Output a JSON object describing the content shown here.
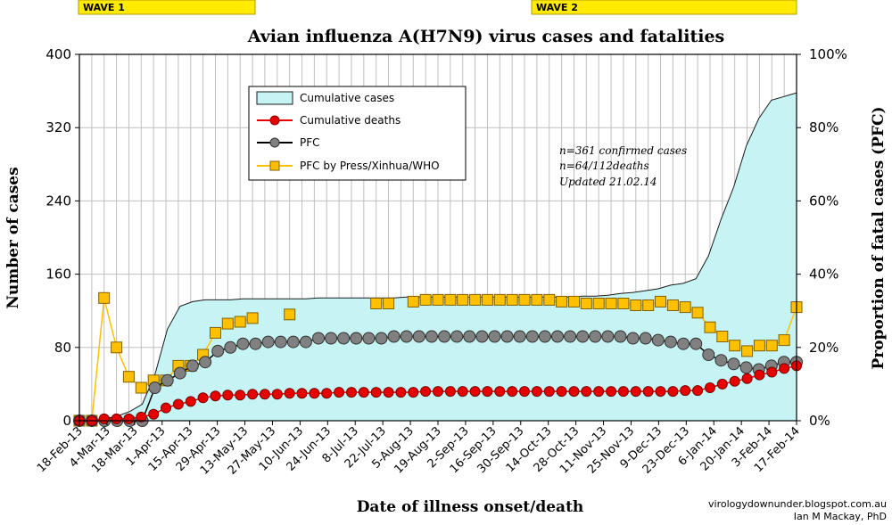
{
  "waves": [
    {
      "label": "WAVE 1"
    },
    {
      "label": "WAVE 2"
    }
  ],
  "notes": [
    "n=361 confirmed cases",
    "n=64/112deaths",
    "Updated 21.02.14"
  ],
  "credits": [
    "virologydownunder.blogspot.com.au",
    "Ian M Mackay, PhD"
  ],
  "colors": {
    "area_fill": "#c6f4f4",
    "area_stroke": "#1a1a1a",
    "deaths": "#e60000",
    "pfc": "#808080",
    "pfc_press": "#ffc000",
    "grid": "#bfbfbf",
    "wave": "#ffeb00"
  },
  "chart_data": {
    "type": "line",
    "title": "Avian influenza A(H7N9) virus cases and fatalities",
    "xlabel": "Date of illness onset/death",
    "ylabel": "Number of cases",
    "y2label": "Proportion of fatal cases (PFC)",
    "ylim": [
      0,
      400
    ],
    "y2lim": [
      0,
      100
    ],
    "yticks": [
      "0",
      "80",
      "160",
      "240",
      "320",
      "400"
    ],
    "y2ticks": [
      "0%",
      "20%",
      "40%",
      "60%",
      "80%",
      "100%"
    ],
    "x_labels": [
      "18-Feb-13",
      "4-Mar-13",
      "18-Mar-13",
      "1-Apr-13",
      "15-Apr-13",
      "29-Apr-13",
      "13-May-13",
      "27-May-13",
      "10-Jun-13",
      "24-Jun-13",
      "8-Jul-13",
      "22-Jul-13",
      "5-Aug-13",
      "19-Aug-13",
      "2-Sep-13",
      "16-Sep-13",
      "30-Sep-13",
      "14-Oct-13",
      "28-Oct-13",
      "11-Nov-13",
      "25-Nov-13",
      "9-Dec-13",
      "23-Dec-13",
      "6-Jan-14",
      "20-Jan-14",
      "3-Feb-14",
      "17-Feb-14"
    ],
    "grid": true,
    "legend_position": "top-left",
    "series": [
      {
        "name": "Cumulative cases",
        "type": "area",
        "axis": "left",
        "values": [
          0,
          0,
          2,
          5,
          10,
          18,
          50,
          100,
          125,
          130,
          132,
          132,
          132,
          133,
          133,
          133,
          133,
          133,
          133,
          134,
          134,
          134,
          134,
          134,
          134,
          134,
          135,
          135,
          135,
          135,
          135,
          135,
          135,
          135,
          135,
          135,
          135,
          135,
          135,
          135,
          136,
          136,
          137,
          139,
          140,
          142,
          144,
          148,
          150,
          155,
          180,
          220,
          255,
          300,
          330,
          350,
          354,
          358
        ]
      },
      {
        "name": "Cumulative deaths",
        "type": "line",
        "axis": "left",
        "values": [
          0,
          0,
          2,
          2,
          2,
          4,
          7,
          14,
          18,
          21,
          25,
          27,
          28,
          28,
          29,
          29,
          29,
          30,
          30,
          30,
          30,
          31,
          31,
          31,
          31,
          31,
          31,
          31,
          32,
          32,
          32,
          32,
          32,
          32,
          32,
          32,
          32,
          32,
          32,
          32,
          32,
          32,
          32,
          32,
          32,
          32,
          32,
          32,
          32,
          33,
          33,
          36,
          40,
          43,
          46,
          50,
          53,
          57,
          60
        ]
      },
      {
        "name": "PFC",
        "type": "line",
        "axis": "right",
        "values": [
          0,
          0,
          0,
          0,
          0,
          0,
          9,
          11,
          13,
          15,
          16,
          19,
          20,
          21,
          21,
          21.5,
          21.5,
          21.5,
          21.5,
          22.5,
          22.5,
          22.5,
          22.5,
          22.5,
          22.5,
          23,
          23,
          23,
          23,
          23,
          23,
          23,
          23,
          23,
          23,
          23,
          23,
          23,
          23,
          23,
          23,
          23,
          23,
          23,
          22.5,
          22.5,
          22,
          21.5,
          21,
          21,
          18,
          16.5,
          15.5,
          14.5,
          14,
          15,
          16,
          16
        ]
      },
      {
        "name": "PFC by Press/Xinhua/WHO",
        "type": "line",
        "axis": "right",
        "values": [
          0,
          0,
          33.5,
          20,
          12,
          9,
          11,
          11,
          15,
          15,
          18,
          24,
          26.5,
          27,
          28,
          null,
          null,
          29,
          null,
          null,
          null,
          null,
          null,
          null,
          32,
          32,
          null,
          32.5,
          33,
          33,
          33,
          33,
          33,
          33,
          33,
          33,
          33,
          33,
          33,
          32.5,
          32.5,
          32,
          32,
          32,
          32,
          31.5,
          31.5,
          32.5,
          31.5,
          31,
          29.5,
          25.5,
          23,
          20.5,
          19,
          20.5,
          20.5,
          22,
          31
        ]
      }
    ]
  }
}
